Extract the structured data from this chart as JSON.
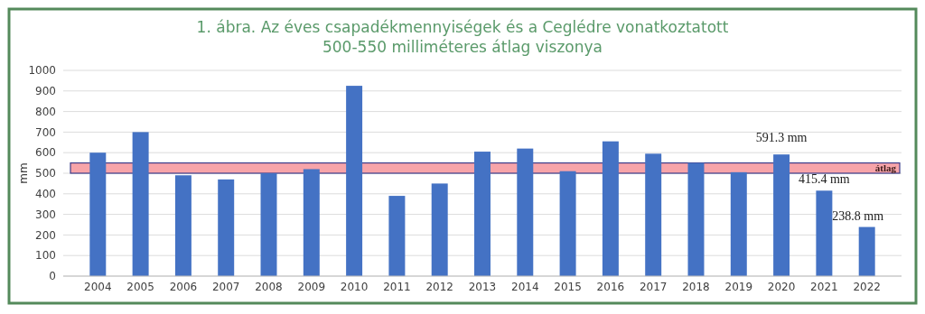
{
  "chart_data": {
    "type": "bar",
    "title": "1. ábra. Az éves csapadékmennyiségek és a Ceglédre vonatkoztatott",
    "subtitle": "500-550 milliméteres átlag viszonya",
    "ylabel": "mm",
    "categories": [
      "2004",
      "2005",
      "2006",
      "2007",
      "2008",
      "2009",
      "2010",
      "2011",
      "2012",
      "2013",
      "2014",
      "2015",
      "2016",
      "2017",
      "2018",
      "2019",
      "2020",
      "2021",
      "2022"
    ],
    "values": [
      600,
      700,
      490,
      470,
      500,
      520,
      925,
      390,
      450,
      605,
      620,
      510,
      655,
      595,
      550,
      505,
      591.3,
      415.4,
      238.8
    ],
    "value_labels": [
      null,
      null,
      null,
      null,
      null,
      null,
      null,
      null,
      null,
      null,
      null,
      null,
      null,
      null,
      null,
      null,
      "591.3  mm",
      "415.4  mm",
      "238.8  mm"
    ],
    "color": "#4472c4",
    "ylim": [
      0,
      1000
    ],
    "yticks": [
      0,
      100,
      200,
      300,
      400,
      500,
      600,
      700,
      800,
      900,
      1000
    ],
    "grid": "y",
    "bands": [
      {
        "axis": "y",
        "from": 500,
        "to": 550,
        "label": "átlag",
        "color": "#f4868c"
      }
    ]
  }
}
